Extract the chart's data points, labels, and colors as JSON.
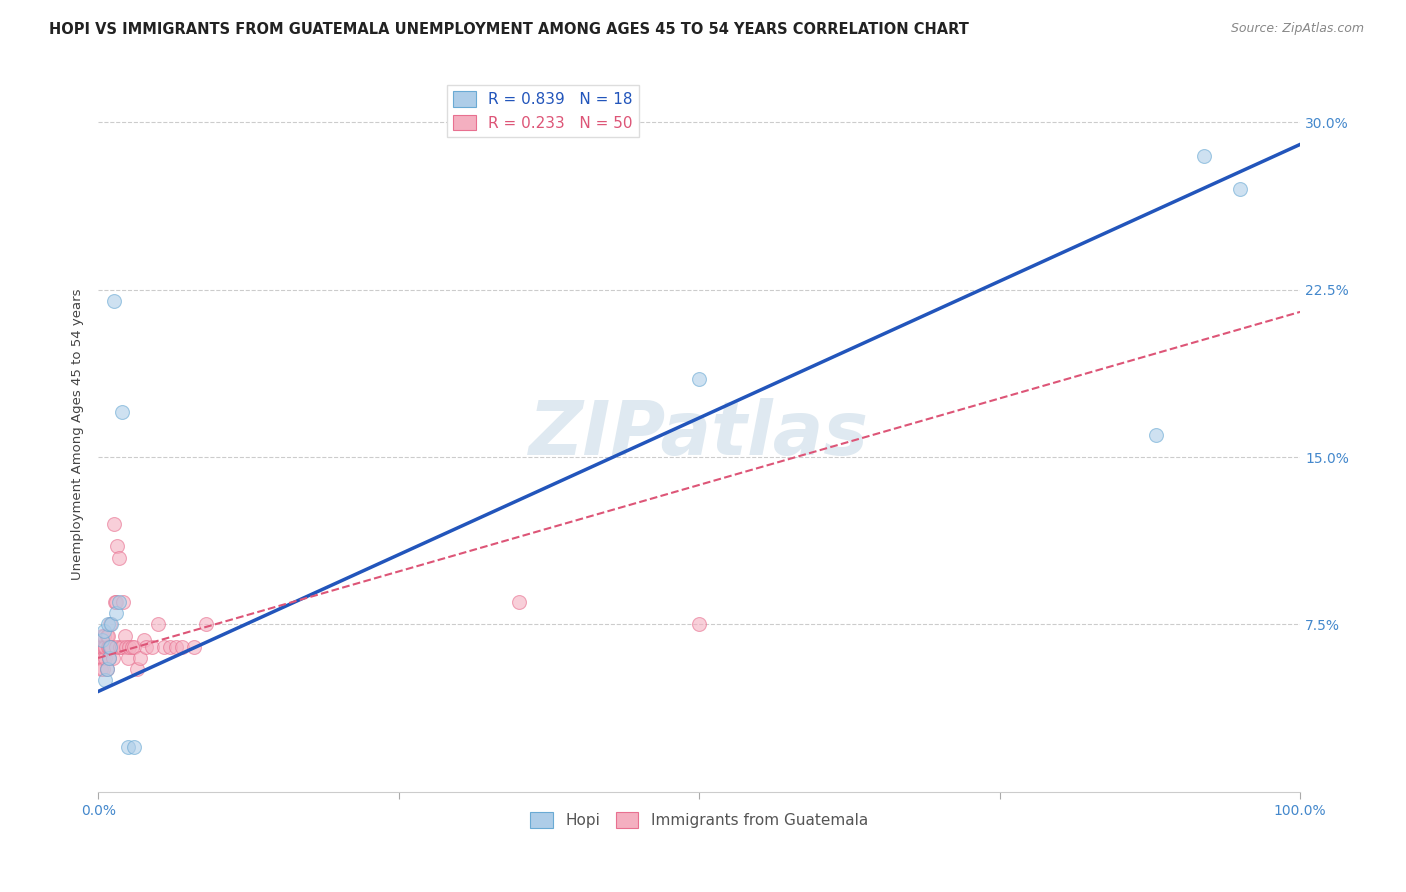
{
  "title": "HOPI VS IMMIGRANTS FROM GUATEMALA UNEMPLOYMENT AMONG AGES 45 TO 54 YEARS CORRELATION CHART",
  "source": "Source: ZipAtlas.com",
  "ylabel": "Unemployment Among Ages 45 to 54 years",
  "xlim": [
    0.0,
    1.0
  ],
  "ylim": [
    0.0,
    0.32
  ],
  "xticks": [
    0.0,
    0.25,
    0.5,
    0.75,
    1.0
  ],
  "xticklabels": [
    "0.0%",
    "",
    "",
    "",
    "100.0%"
  ],
  "yticks": [
    0.0,
    0.075,
    0.15,
    0.225,
    0.3
  ],
  "yticklabels": [
    "",
    "7.5%",
    "15.0%",
    "22.5%",
    "30.0%"
  ],
  "hopi_color": "#aecde8",
  "hopi_edge_color": "#6aaad4",
  "guate_color": "#f4afc0",
  "guate_edge_color": "#e87090",
  "hopi_R": 0.839,
  "hopi_N": 18,
  "guate_R": 0.233,
  "guate_N": 50,
  "hopi_line_color": "#2255bb",
  "guate_line_color": "#dd5577",
  "watermark": "ZIPatlas",
  "legend_label_hopi": "Hopi",
  "legend_label_guate": "Immigrants from Guatemala",
  "hopi_x": [
    0.003,
    0.005,
    0.006,
    0.007,
    0.008,
    0.009,
    0.01,
    0.011,
    0.013,
    0.015,
    0.017,
    0.02,
    0.025,
    0.03,
    0.5,
    0.88,
    0.92,
    0.95
  ],
  "hopi_y": [
    0.068,
    0.072,
    0.05,
    0.055,
    0.075,
    0.06,
    0.065,
    0.075,
    0.22,
    0.08,
    0.085,
    0.17,
    0.02,
    0.02,
    0.185,
    0.16,
    0.285,
    0.27
  ],
  "guate_x": [
    0.001,
    0.002,
    0.002,
    0.003,
    0.003,
    0.004,
    0.004,
    0.005,
    0.005,
    0.006,
    0.006,
    0.007,
    0.007,
    0.008,
    0.008,
    0.009,
    0.009,
    0.01,
    0.01,
    0.011,
    0.012,
    0.013,
    0.014,
    0.015,
    0.015,
    0.016,
    0.017,
    0.018,
    0.02,
    0.021,
    0.022,
    0.023,
    0.025,
    0.026,
    0.028,
    0.03,
    0.032,
    0.035,
    0.038,
    0.04,
    0.045,
    0.05,
    0.055,
    0.06,
    0.065,
    0.07,
    0.08,
    0.09,
    0.35,
    0.5
  ],
  "guate_y": [
    0.065,
    0.06,
    0.055,
    0.07,
    0.065,
    0.06,
    0.055,
    0.065,
    0.07,
    0.06,
    0.065,
    0.055,
    0.07,
    0.065,
    0.07,
    0.06,
    0.065,
    0.065,
    0.075,
    0.065,
    0.06,
    0.12,
    0.085,
    0.065,
    0.085,
    0.11,
    0.105,
    0.065,
    0.065,
    0.085,
    0.07,
    0.065,
    0.06,
    0.065,
    0.065,
    0.065,
    0.055,
    0.06,
    0.068,
    0.065,
    0.065,
    0.075,
    0.065,
    0.065,
    0.065,
    0.065,
    0.065,
    0.075,
    0.085,
    0.075
  ],
  "background_color": "#ffffff",
  "grid_color": "#cccccc",
  "tick_color": "#4488cc",
  "title_fontsize": 10.5,
  "axis_label_fontsize": 9.5,
  "tick_fontsize": 10,
  "legend_fontsize": 11,
  "marker_size": 100,
  "marker_alpha": 0.6
}
